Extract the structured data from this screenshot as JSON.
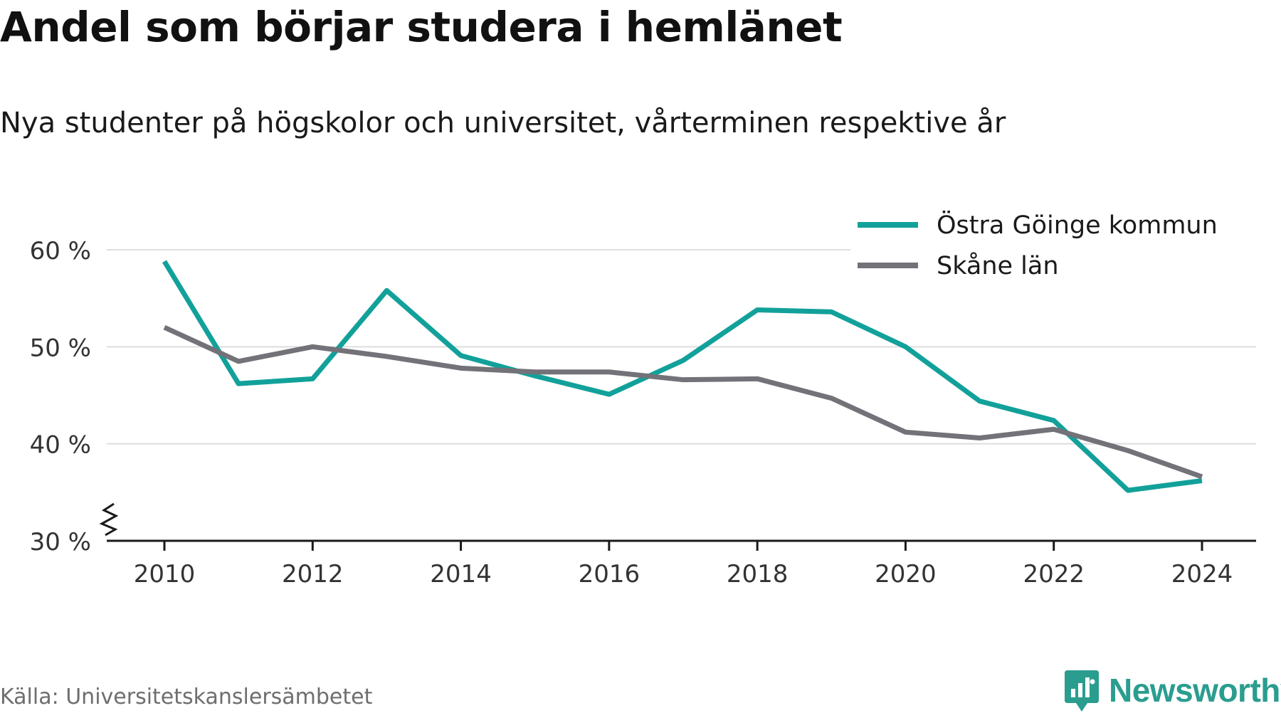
{
  "title": "Andel som börjar studera i hemlänet",
  "subtitle": "Nya studenter på högskolor och universitet, vårterminen respektive år",
  "source": "Källa: Universitetskanslersämbetet",
  "brand": {
    "name": "Newsworthy",
    "color": "#2a9d8f",
    "icon": "newsworthy-logo-icon"
  },
  "chart_data": {
    "type": "line",
    "x": [
      2010,
      2011,
      2012,
      2013,
      2014,
      2015,
      2016,
      2017,
      2018,
      2019,
      2020,
      2021,
      2022,
      2023,
      2024
    ],
    "x_ticks": [
      "2010",
      "2012",
      "2014",
      "2016",
      "2018",
      "2020",
      "2022",
      "2024"
    ],
    "y_ticks": [
      "30 %",
      "40 %",
      "50 %",
      "60 %"
    ],
    "ylim": [
      30,
      60
    ],
    "xlim": [
      2010,
      2024
    ],
    "grid": true,
    "axis_break": true,
    "legend_position": "top-right",
    "series": [
      {
        "name": "Östra Göinge kommun",
        "color": "#12a19a",
        "values": [
          58.8,
          46.2,
          46.7,
          55.8,
          49.1,
          47.0,
          45.1,
          48.6,
          53.8,
          53.6,
          50.0,
          44.4,
          42.4,
          35.2,
          36.2
        ]
      },
      {
        "name": "Skåne län",
        "color": "#737278",
        "values": [
          52.0,
          48.5,
          50.0,
          49.0,
          47.8,
          47.4,
          47.4,
          46.6,
          46.7,
          44.7,
          41.2,
          40.6,
          41.5,
          39.3,
          36.6
        ]
      }
    ]
  }
}
